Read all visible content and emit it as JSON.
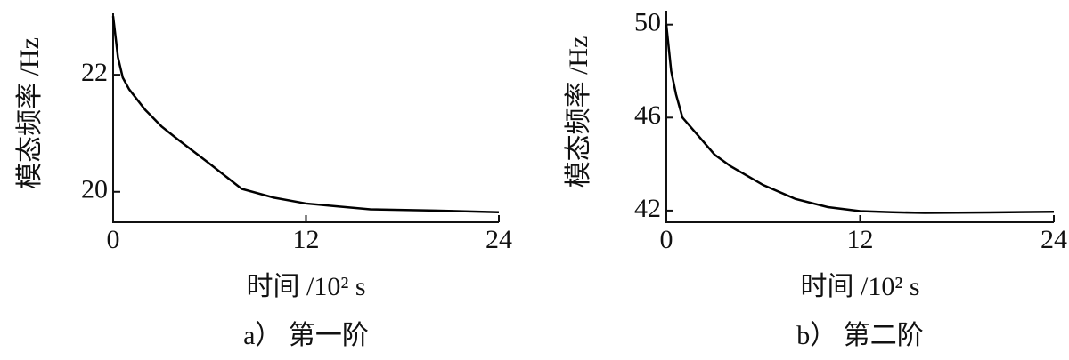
{
  "chart_data": [
    {
      "type": "line",
      "subtitle": "a） 第一阶",
      "x_label": "时间 /10² s",
      "y_label": "模态频率 /Hz",
      "x": [
        0,
        0.3,
        0.6,
        1,
        2,
        3,
        4,
        6,
        8,
        10,
        12,
        14,
        16,
        20,
        24
      ],
      "values": [
        23,
        22.3,
        21.95,
        21.75,
        21.4,
        21.12,
        20.9,
        20.48,
        20.05,
        19.9,
        19.8,
        19.75,
        19.7,
        19.68,
        19.65
      ],
      "color": "#000000",
      "xlim": [
        0,
        24
      ],
      "xticks": [
        0,
        12,
        24
      ],
      "ylim": [
        19.48,
        23.05
      ],
      "yticks": [
        20,
        22
      ]
    },
    {
      "type": "line",
      "subtitle": "b） 第二阶",
      "x_label": "时间 /10² s",
      "y_label": "模态频率 /Hz",
      "x": [
        0,
        0.3,
        0.6,
        1,
        2,
        3,
        4,
        6,
        8,
        10,
        12,
        14,
        16,
        20,
        24
      ],
      "values": [
        50,
        48,
        47,
        46,
        45.2,
        44.4,
        43.9,
        43.1,
        42.5,
        42.15,
        41.98,
        41.93,
        41.9,
        41.92,
        41.95
      ],
      "color": "#000000",
      "xlim": [
        0,
        24
      ],
      "xticks": [
        0,
        12,
        24
      ],
      "ylim": [
        41.5,
        50.6
      ],
      "yticks": [
        42,
        46,
        50
      ]
    }
  ]
}
